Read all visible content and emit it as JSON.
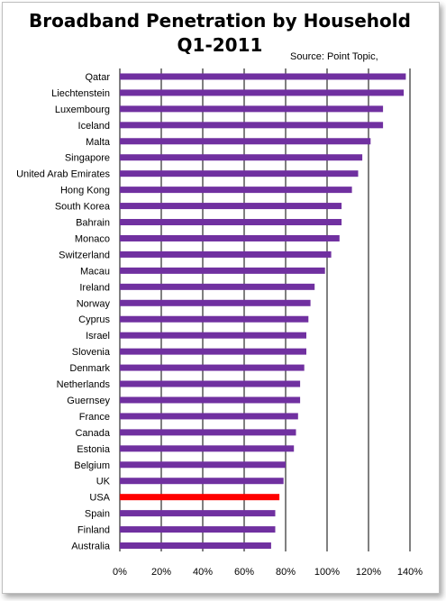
{
  "chart_data": {
    "type": "bar",
    "orientation": "horizontal",
    "title": "Broadband Penetration by Household",
    "subtitle": "Q1-2011",
    "source_note": "Source: Point Topic,",
    "categories": [
      "Qatar",
      "Liechtenstein",
      "Luxembourg",
      "Iceland",
      "Malta",
      "Singapore",
      "United Arab Emirates",
      "Hong Kong",
      "South Korea",
      "Bahrain",
      "Monaco",
      "Switzerland",
      "Macau",
      "Ireland",
      "Norway",
      "Cyprus",
      "Israel",
      "Slovenia",
      "Denmark",
      "Netherlands",
      "Guernsey",
      "France",
      "Canada",
      "Estonia",
      "Belgium",
      "UK",
      "USA",
      "Spain",
      "Finland",
      "Australia"
    ],
    "values": [
      138,
      137,
      127,
      127,
      121,
      117,
      115,
      112,
      107,
      107,
      106,
      102,
      99,
      94,
      92,
      91,
      90,
      90,
      89,
      87,
      87,
      86,
      85,
      84,
      80,
      79,
      77,
      75,
      75,
      73
    ],
    "highlight_category": "USA",
    "xlim": [
      0,
      140
    ],
    "xticks": [
      "0%",
      "20%",
      "40%",
      "60%",
      "80%",
      "100%",
      "120%",
      "140%"
    ],
    "xtick_values": [
      0,
      20,
      40,
      60,
      80,
      100,
      120,
      140
    ],
    "grid": "vertical",
    "legend": "none",
    "colors": {
      "bar": "#7030a0",
      "highlight": "#ff0000",
      "grid": "#000000"
    }
  }
}
